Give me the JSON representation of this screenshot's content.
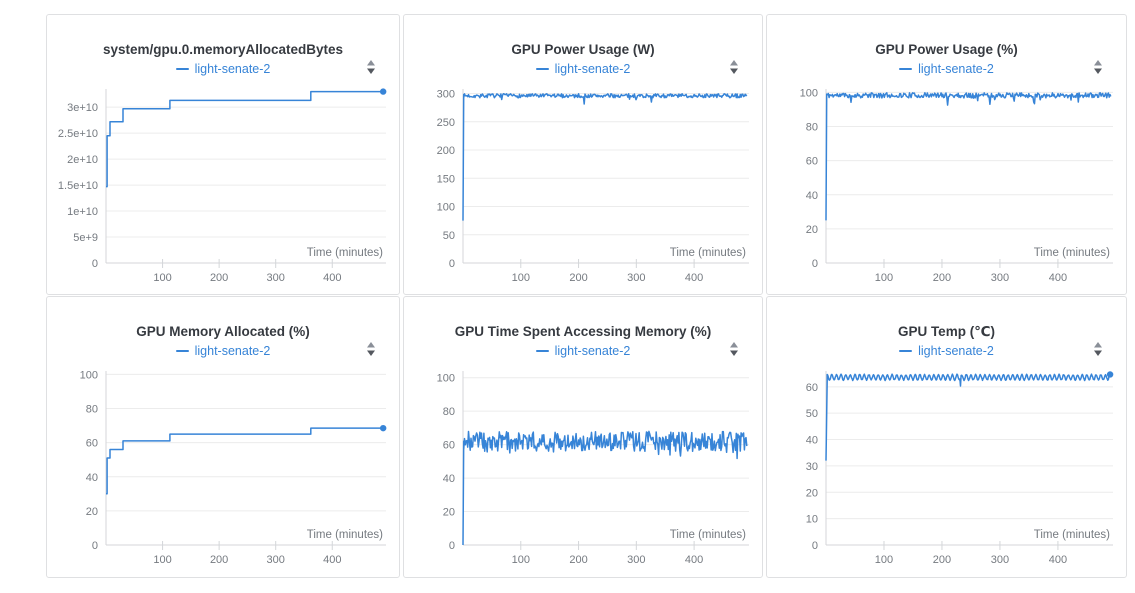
{
  "colors": {
    "line": "#3784d7",
    "grid": "#ececec",
    "axis": "#d4d6d9",
    "tick_text": "#757a80",
    "title_text": "#363a40",
    "icon_top": "#8a8f98",
    "icon_bottom": "#54585f",
    "panel_border": "#dfe0e2"
  },
  "panels": [
    {
      "title": "system/gpu.0.memoryAllocatedBytes",
      "legend": "light-senate-2"
    },
    {
      "title": "GPU Power Usage (W)",
      "legend": "light-senate-2"
    },
    {
      "title": "GPU Power Usage (%)",
      "legend": "light-senate-2"
    },
    {
      "title": "GPU Memory Allocated (%)",
      "legend": "light-senate-2"
    },
    {
      "title": "GPU Time Spent Accessing Memory (%)",
      "legend": "light-senate-2"
    },
    {
      "title": "GPU Temp (℃)",
      "legend": "light-senate-2"
    }
  ],
  "chart_data": [
    {
      "type": "line",
      "title": "system/gpu.0.memoryAllocatedBytes",
      "xlabel": "Time (minutes)",
      "xlim": [
        0,
        495
      ],
      "xticks": [
        100,
        200,
        300,
        400
      ],
      "ylim": [
        0,
        33500000000.0
      ],
      "yticks": [
        0,
        5000000000.0,
        10000000000.0,
        15000000000.0,
        20000000000.0,
        25000000000.0,
        30000000000.0
      ],
      "ytick_labels": [
        "0",
        "5e+9",
        "1e+10",
        "1.5e+10",
        "2e+10",
        "2.5e+10",
        "3e+10"
      ],
      "legend_position": "top",
      "grid": "horizontal",
      "series": [
        {
          "name": "light-senate-2",
          "end_marker": true,
          "points": [
            [
              0,
              14700000000.0
            ],
            [
              2,
              14700000000.0
            ],
            [
              2,
              24500000000.0
            ],
            [
              7,
              24500000000.0
            ],
            [
              7,
              27200000000.0
            ],
            [
              30,
              27200000000.0
            ],
            [
              30,
              29700000000.0
            ],
            [
              113,
              29700000000.0
            ],
            [
              113,
              31300000000.0
            ],
            [
              362,
              31300000000.0
            ],
            [
              362,
              33000000000.0
            ],
            [
              490,
              33000000000.0
            ]
          ]
        }
      ]
    },
    {
      "type": "line",
      "title": "GPU Power Usage (W)",
      "xlabel": "Time (minutes)",
      "xlim": [
        0,
        495
      ],
      "xticks": [
        100,
        200,
        300,
        400
      ],
      "ylim": [
        0,
        308
      ],
      "yticks": [
        0,
        50,
        100,
        150,
        200,
        250,
        300
      ],
      "ytick_labels": [
        "0",
        "50",
        "100",
        "150",
        "200",
        "250",
        "300"
      ],
      "legend_position": "top",
      "grid": "horizontal",
      "series": [
        {
          "name": "light-senate-2",
          "end_marker": false,
          "synth": {
            "kind": "noise",
            "seed": 7,
            "start": [
              [
                0,
                75
              ],
              [
                1.2,
                298
              ]
            ],
            "mean": 296,
            "jitter": 3.5,
            "dip_prob": 0.04,
            "dip_extra": 12,
            "clamp_max": 300,
            "x_from": 1.2,
            "x_to": 492,
            "step": 1.4
          }
        }
      ]
    },
    {
      "type": "line",
      "title": "GPU Power Usage (%)",
      "xlabel": "Time (minutes)",
      "xlim": [
        0,
        495
      ],
      "xticks": [
        100,
        200,
        300,
        400
      ],
      "ylim": [
        0,
        102
      ],
      "yticks": [
        0,
        20,
        40,
        60,
        80,
        100
      ],
      "ytick_labels": [
        "0",
        "20",
        "40",
        "60",
        "80",
        "100"
      ],
      "legend_position": "top",
      "grid": "horizontal",
      "series": [
        {
          "name": "light-senate-2",
          "end_marker": false,
          "synth": {
            "kind": "noise",
            "seed": 11,
            "start": [
              [
                0,
                25
              ],
              [
                1.2,
                99
              ]
            ],
            "mean": 98.3,
            "jitter": 1.5,
            "dip_prob": 0.05,
            "dip_extra": 5,
            "clamp_max": 100,
            "x_from": 1.2,
            "x_to": 492,
            "step": 1.4
          }
        }
      ]
    },
    {
      "type": "line",
      "title": "GPU Memory Allocated (%)",
      "xlabel": "Time (minutes)",
      "xlim": [
        0,
        495
      ],
      "xticks": [
        100,
        200,
        300,
        400
      ],
      "ylim": [
        0,
        102
      ],
      "yticks": [
        0,
        20,
        40,
        60,
        80,
        100
      ],
      "ytick_labels": [
        "0",
        "20",
        "40",
        "60",
        "80",
        "100"
      ],
      "legend_position": "top",
      "grid": "horizontal",
      "series": [
        {
          "name": "light-senate-2",
          "end_marker": true,
          "points": [
            [
              0,
              30
            ],
            [
              2,
              30
            ],
            [
              2,
              51
            ],
            [
              7,
              51
            ],
            [
              7,
              56
            ],
            [
              30,
              56
            ],
            [
              30,
              61
            ],
            [
              113,
              61
            ],
            [
              113,
              65
            ],
            [
              362,
              65
            ],
            [
              362,
              68.5
            ],
            [
              490,
              68.5
            ]
          ]
        }
      ]
    },
    {
      "type": "line",
      "title": "GPU Time Spent Accessing Memory (%)",
      "xlabel": "Time (minutes)",
      "xlim": [
        0,
        495
      ],
      "xticks": [
        100,
        200,
        300,
        400
      ],
      "ylim": [
        0,
        104
      ],
      "yticks": [
        0,
        20,
        40,
        60,
        80,
        100
      ],
      "ytick_labels": [
        "0",
        "20",
        "40",
        "60",
        "80",
        "100"
      ],
      "legend_position": "top",
      "grid": "horizontal",
      "series": [
        {
          "name": "light-senate-2",
          "end_marker": false,
          "synth": {
            "kind": "noise",
            "seed": 23,
            "start": [
              [
                0,
                0
              ],
              [
                1.2,
                62
              ]
            ],
            "mean": 62,
            "jitter": 6,
            "dip_prob": 0.05,
            "dip_extra": 5,
            "clamp_max": 73,
            "x_from": 1.2,
            "x_to": 492,
            "step": 1.4
          }
        }
      ]
    },
    {
      "type": "line",
      "title": "GPU Temp (℃)",
      "xlabel": "Time (minutes)",
      "xlim": [
        0,
        495
      ],
      "xticks": [
        100,
        200,
        300,
        400
      ],
      "ylim": [
        0,
        66
      ],
      "yticks": [
        0,
        10,
        20,
        30,
        40,
        50,
        60
      ],
      "ytick_labels": [
        "0",
        "10",
        "20",
        "30",
        "40",
        "50",
        "60"
      ],
      "legend_position": "top",
      "grid": "horizontal",
      "series": [
        {
          "name": "light-senate-2",
          "end_marker": true,
          "synth": {
            "kind": "saw",
            "seed": 31,
            "start": [
              [
                0,
                32
              ],
              [
                2,
                63
              ]
            ],
            "base": 63.6,
            "amp": 2.0,
            "period": 8,
            "jitter": 0.4,
            "dips": [
              [
                232,
                60.3
              ]
            ],
            "clamp_max": 65,
            "x_from": 2,
            "x_to": 490,
            "step": 1
          }
        }
      ]
    }
  ]
}
